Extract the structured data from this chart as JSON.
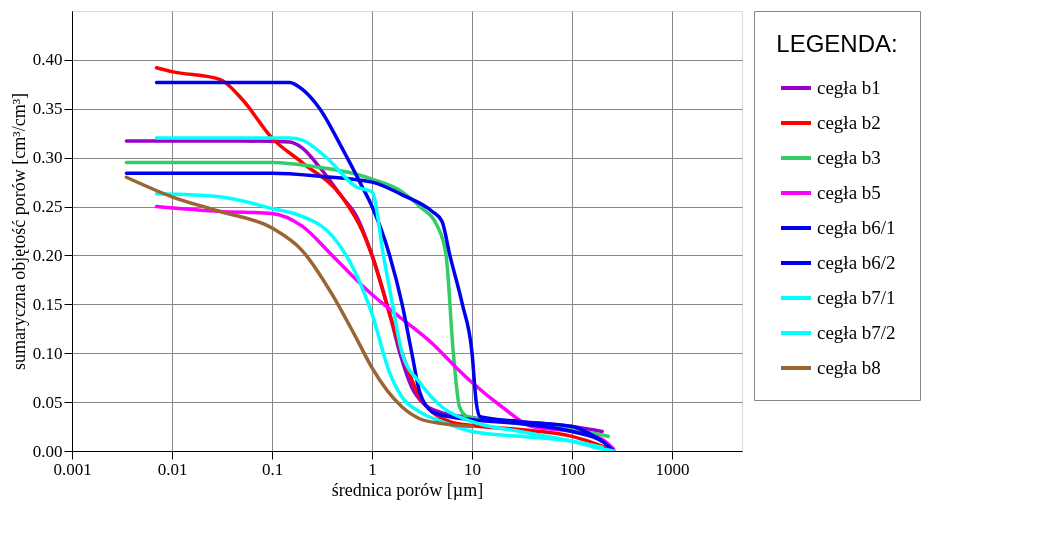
{
  "chart_data": {
    "type": "line",
    "xlabel": "średnica porów [µm]",
    "ylabel": "sumaryczna objętość porów [cm³/cm³]",
    "legend_title": "LEGENDA:",
    "log": "x",
    "grid": true,
    "legend": "right",
    "marker": "none",
    "line_style": "solid",
    "xlim": [
      0.001,
      5000
    ],
    "xticks": [
      0.001,
      0.01,
      0.1,
      1,
      10,
      100,
      1000
    ],
    "ylim": [
      0,
      0.45
    ],
    "yticks": [
      {
        "value": 0,
        "label": "0.00"
      },
      0.05,
      {
        "value": 0.1,
        "label": "0.10"
      },
      0.15,
      {
        "value": 0.2,
        "label": "0.20"
      },
      0.25,
      {
        "value": 0.3,
        "label": "0.30"
      },
      0.35,
      {
        "value": 0.4,
        "label": "0.40"
      }
    ],
    "series": [
      {
        "name": "cegła b1",
        "color": "#9900cc",
        "x": [
          0.0035,
          0.01,
          0.05,
          0.15,
          0.2,
          0.3,
          0.5,
          0.7,
          1,
          1.5,
          1.9,
          2.5,
          3.3,
          4.7,
          10,
          30,
          100,
          200
        ],
        "values": [
          0.317,
          0.317,
          0.317,
          0.316,
          0.31,
          0.29,
          0.26,
          0.24,
          0.2,
          0.14,
          0.1,
          0.065,
          0.048,
          0.04,
          0.034,
          0.03,
          0.025,
          0.02
        ]
      },
      {
        "name": "cegła b2",
        "color": "#ff0000",
        "x": [
          0.007,
          0.01,
          0.03,
          0.05,
          0.1,
          0.2,
          0.5,
          0.8,
          1,
          1.5,
          2,
          3,
          4,
          6,
          10,
          30,
          100,
          200,
          260
        ],
        "values": [
          0.392,
          0.388,
          0.38,
          0.36,
          0.32,
          0.295,
          0.26,
          0.225,
          0.2,
          0.14,
          0.1,
          0.055,
          0.04,
          0.03,
          0.026,
          0.022,
          0.015,
          0.005,
          0.0
        ]
      },
      {
        "name": "cegła b3",
        "color": "#33cc66",
        "x": [
          0.0035,
          0.1,
          0.3,
          0.7,
          1,
          2,
          3,
          4.5,
          5.5,
          6.5,
          7.5,
          9,
          30,
          100,
          230
        ],
        "values": [
          0.295,
          0.295,
          0.29,
          0.283,
          0.278,
          0.265,
          0.25,
          0.23,
          0.2,
          0.1,
          0.045,
          0.035,
          0.028,
          0.022,
          0.015
        ]
      },
      {
        "name": "cegła b5",
        "color": "#ff00ff",
        "x": [
          0.007,
          0.03,
          0.1,
          0.2,
          0.4,
          0.7,
          1,
          2,
          4,
          7,
          10,
          20,
          40,
          100,
          200,
          260
        ],
        "values": [
          0.25,
          0.245,
          0.243,
          0.23,
          0.2,
          0.175,
          0.16,
          0.135,
          0.11,
          0.085,
          0.07,
          0.045,
          0.025,
          0.02,
          0.012,
          0.002
        ]
      },
      {
        "name": "cegła b6/1",
        "color": "#0000ee",
        "x": [
          0.007,
          0.15,
          0.2,
          0.3,
          0.5,
          0.8,
          1,
          1.5,
          2,
          2.5,
          3,
          4,
          6,
          10,
          30,
          100,
          200,
          260
        ],
        "values": [
          0.377,
          0.377,
          0.37,
          0.35,
          0.31,
          0.27,
          0.25,
          0.2,
          0.15,
          0.1,
          0.06,
          0.04,
          0.035,
          0.032,
          0.028,
          0.02,
          0.01,
          0.0
        ]
      },
      {
        "name": "cegła b6/2",
        "color": "#0000ee",
        "x": [
          0.0035,
          0.1,
          0.3,
          1,
          2,
          4,
          5,
          6,
          8,
          10,
          11,
          12,
          30,
          100,
          200
        ],
        "values": [
          0.284,
          0.284,
          0.281,
          0.275,
          0.262,
          0.245,
          0.235,
          0.2,
          0.15,
          0.1,
          0.05,
          0.035,
          0.03,
          0.025,
          0.01
        ]
      },
      {
        "name": "cegła b7/1",
        "color": "#00ffff",
        "x": [
          0.007,
          0.15,
          0.2,
          0.35,
          0.7,
          1,
          1.3,
          1.6,
          2,
          3,
          5,
          10,
          30,
          100,
          200,
          260
        ],
        "values": [
          0.32,
          0.32,
          0.318,
          0.3,
          0.27,
          0.265,
          0.2,
          0.15,
          0.1,
          0.07,
          0.045,
          0.03,
          0.02,
          0.01,
          0.002,
          0.0
        ]
      },
      {
        "name": "cegła b7/2",
        "color": "#00ffff",
        "x": [
          0.007,
          0.03,
          0.1,
          0.2,
          0.4,
          0.7,
          1,
          1.5,
          2,
          3,
          5,
          10,
          30,
          100,
          200
        ],
        "values": [
          0.263,
          0.26,
          0.248,
          0.24,
          0.22,
          0.18,
          0.14,
          0.08,
          0.055,
          0.04,
          0.03,
          0.02,
          0.015,
          0.01,
          0.004
        ]
      },
      {
        "name": "cegła b8",
        "color": "#996633",
        "x": [
          0.0035,
          0.01,
          0.03,
          0.1,
          0.2,
          0.4,
          0.7,
          1,
          2,
          3,
          5,
          10
        ],
        "values": [
          0.28,
          0.26,
          0.245,
          0.228,
          0.205,
          0.16,
          0.115,
          0.085,
          0.045,
          0.033,
          0.028,
          0.025
        ]
      }
    ]
  }
}
